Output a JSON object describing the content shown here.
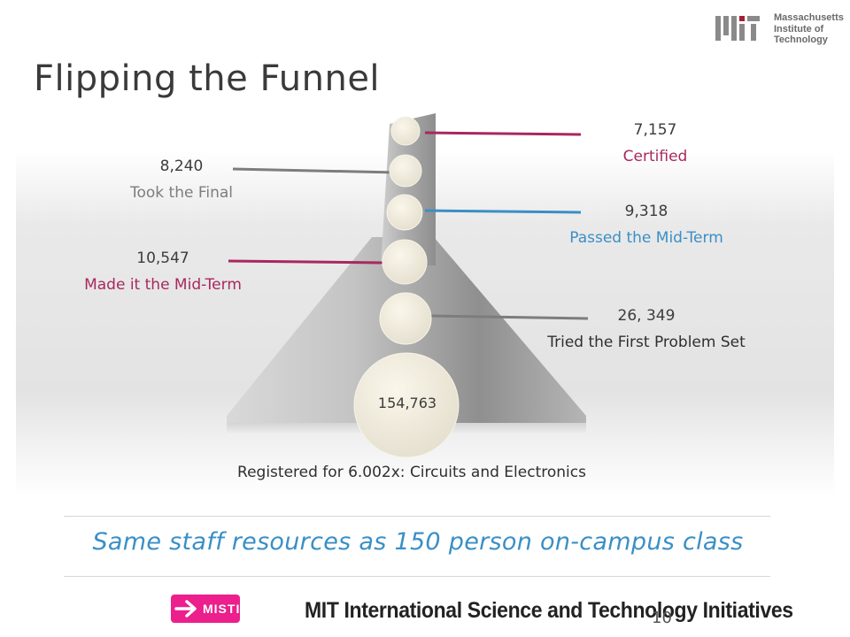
{
  "title": "Flipping the Funnel",
  "logo": {
    "line1": "Massachusetts",
    "line2": "Institute of",
    "line3": "Technology"
  },
  "funnel": {
    "base_value": "154,763",
    "stages": [
      {
        "value": "26, 349",
        "label": "Tried the First Problem Set"
      },
      {
        "value": "10,547",
        "label": "Made it the Mid-Term"
      },
      {
        "value": "9,318",
        "label": "Passed the Mid-Term"
      },
      {
        "value": "8,240",
        "label": "Took the Final"
      },
      {
        "value": "7,157",
        "label": "Certified"
      }
    ],
    "caption": "Registered for 6.002x: Circuits and Electronics"
  },
  "colors": {
    "magenta": "#a8285f",
    "blue": "#3a8fc6",
    "gray": "#7d7d7d",
    "dark": "#2f2f2f"
  },
  "tagline": "Same staff resources as 150 person on-campus class",
  "footer": {
    "badge": "MISTI",
    "text": "MIT International Science and Technology Initiatives",
    "slide_number": "10"
  }
}
